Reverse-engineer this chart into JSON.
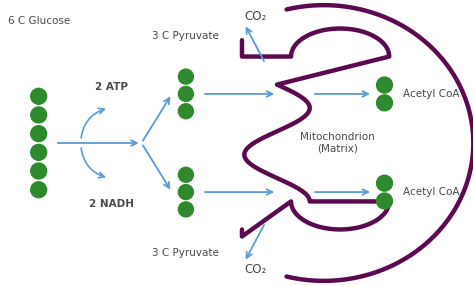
{
  "bg_color": "#ffffff",
  "green_color": "#2d8a2d",
  "arrow_color": "#5b9bd5",
  "mito_color": "#5c0a50",
  "label_color": "#4a4a4a",
  "labels": {
    "glucose": "6 C Glucose",
    "atp": "2 ATP",
    "nadh": "2 NADH",
    "pyruvate_top": "3 C Pyruvate",
    "pyruvate_bot": "3 C Pyruvate",
    "co2_top": "CO₂",
    "co2_bot": "CO₂",
    "acetyl_top": "Acetyl CoA",
    "acetyl_bot": "Acetyl CoA",
    "mito": "Mitochondrion\n(Matrix)"
  },
  "figsize": [
    4.74,
    2.86
  ],
  "dpi": 100,
  "xlim": [
    0,
    10
  ],
  "ylim": [
    0,
    6
  ]
}
